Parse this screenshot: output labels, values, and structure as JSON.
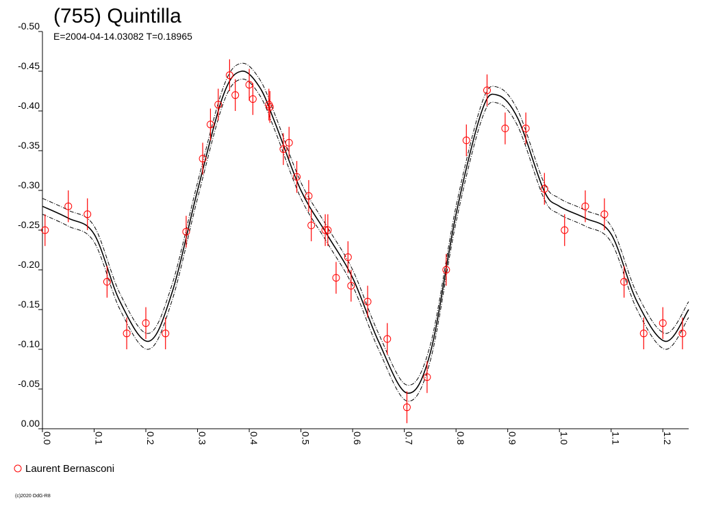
{
  "chart_data": {
    "type": "scatter",
    "title": "(755) Quintilla",
    "subtitle": "E=2004-04-14.03082    T=0.18965",
    "xlim": [
      0.0,
      1.25
    ],
    "ylim": [
      0.0,
      -0.5
    ],
    "y_inverted": true,
    "grid": false,
    "x_ticks": [
      0.0,
      0.1,
      0.2,
      0.3,
      0.4,
      0.5,
      0.6,
      0.7,
      0.8,
      0.9,
      1.0,
      1.1,
      1.2
    ],
    "x_tick_labels": [
      "0.0",
      "0.1",
      "0.2",
      "0.3",
      "0.4",
      "0.5",
      "0.6",
      "0.7",
      "0.8",
      "0.9",
      "1.0",
      "1.1",
      "1.2"
    ],
    "y_ticks": [
      0.0,
      -0.05,
      -0.1,
      -0.15,
      -0.2,
      -0.25,
      -0.3,
      -0.35,
      -0.4,
      -0.45,
      -0.5
    ],
    "y_tick_labels": [
      "0.00",
      "-0.05",
      "-0.10",
      "-0.15",
      "-0.20",
      "-0.25",
      "-0.30",
      "-0.35",
      "-0.40",
      "-0.45",
      "-0.50"
    ],
    "legend_position": "bottom-left",
    "series": [
      {
        "name": "Laurent Bernasconi",
        "color": "#ff0000",
        "marker": "open-circle",
        "error": 0.02,
        "x": [
          0.005,
          0.05,
          0.087,
          0.125,
          0.163,
          0.2,
          0.238,
          0.278,
          0.31,
          0.325,
          0.34,
          0.362,
          0.373,
          0.4,
          0.407,
          0.438,
          0.44,
          0.466,
          0.477,
          0.492,
          0.515,
          0.52,
          0.547,
          0.552,
          0.568,
          0.591,
          0.597,
          0.629,
          0.667,
          0.705,
          0.744,
          0.781,
          0.82,
          0.86,
          0.895,
          0.935,
          0.971,
          1.01,
          1.05,
          1.087,
          1.125,
          1.163,
          1.2,
          1.238
        ],
        "y": [
          -0.25,
          -0.28,
          -0.27,
          -0.185,
          -0.12,
          -0.133,
          -0.12,
          -0.248,
          -0.34,
          -0.383,
          -0.408,
          -0.445,
          -0.42,
          -0.433,
          -0.415,
          -0.408,
          -0.405,
          -0.352,
          -0.36,
          -0.317,
          -0.293,
          -0.256,
          -0.25,
          -0.25,
          -0.19,
          -0.216,
          -0.18,
          -0.16,
          -0.113,
          -0.027,
          -0.065,
          -0.2,
          -0.363,
          -0.426,
          -0.378,
          -0.378,
          -0.302,
          -0.25,
          -0.28,
          -0.27,
          -0.185,
          -0.12,
          -0.133,
          -0.12
        ]
      }
    ],
    "fit_curve": {
      "style": "solid black with dash-dot envelope",
      "envelope_offset": 0.01,
      "x": [
        0.0,
        0.05,
        0.1,
        0.15,
        0.205,
        0.25,
        0.3,
        0.35,
        0.385,
        0.42,
        0.45,
        0.5,
        0.55,
        0.6,
        0.65,
        0.705,
        0.75,
        0.8,
        0.85,
        0.88,
        0.92,
        0.97,
        1.0,
        1.05,
        1.1,
        1.15,
        1.205,
        1.25
      ],
      "y": [
        -0.28,
        -0.265,
        -0.245,
        -0.16,
        -0.11,
        -0.17,
        -0.3,
        -0.42,
        -0.45,
        -0.43,
        -0.385,
        -0.3,
        -0.245,
        -0.19,
        -0.11,
        -0.045,
        -0.095,
        -0.27,
        -0.4,
        -0.42,
        -0.39,
        -0.3,
        -0.28,
        -0.265,
        -0.245,
        -0.16,
        -0.11,
        -0.15
      ]
    }
  },
  "legend": {
    "label": "Laurent Bernasconi"
  },
  "footer": {
    "copyright": "(c)2020 OdG-R8"
  }
}
